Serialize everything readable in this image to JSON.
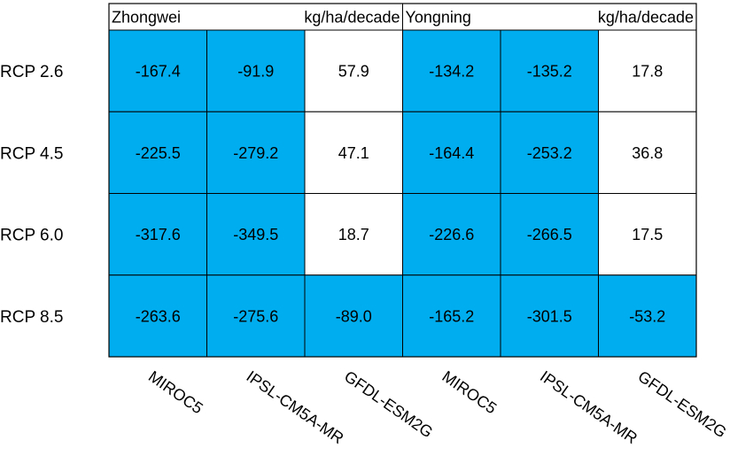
{
  "chart_data": {
    "type": "heatmap",
    "unit": "kg/ha/decade",
    "rows": [
      "RCP 2.6",
      "RCP 4.5",
      "RCP 6.0",
      "RCP 8.5"
    ],
    "columns": [
      "MIROC5",
      "IPSL-CM5A-MR",
      "GFDL-ESM2G",
      "MIROC5",
      "IPSL-CM5A-MR",
      "GFDL-ESM2G"
    ],
    "groups": [
      {
        "name": "Zhongwei",
        "unit": "kg/ha/decade",
        "columns": [
          0,
          1,
          2
        ]
      },
      {
        "name": "Yongning",
        "unit": "kg/ha/decade",
        "columns": [
          3,
          4,
          5
        ]
      }
    ],
    "values": [
      [
        -167.4,
        -91.9,
        57.9,
        -134.2,
        -135.2,
        17.8
      ],
      [
        -225.5,
        -279.2,
        47.1,
        -164.4,
        -253.2,
        36.8
      ],
      [
        -317.6,
        -349.5,
        18.7,
        -226.6,
        -266.5,
        17.5
      ],
      [
        -263.6,
        -275.6,
        -89.0,
        -165.2,
        -301.5,
        -53.2
      ]
    ],
    "display_values": [
      [
        "-167.4",
        "-91.9",
        "57.9",
        "-134.2",
        "-135.2",
        "17.8"
      ],
      [
        "-225.5",
        "-279.2",
        "47.1",
        "-164.4",
        "-253.2",
        "36.8"
      ],
      [
        "-317.6",
        "-349.5",
        "18.7",
        "-226.6",
        "-266.5",
        "17.5"
      ],
      [
        "-263.6",
        "-275.6",
        "-89.0",
        "-165.2",
        "-301.5",
        "-53.2"
      ]
    ],
    "colors": {
      "negative": "#00AEEF",
      "positive": "#FFFFFF",
      "border": "#000000"
    }
  }
}
